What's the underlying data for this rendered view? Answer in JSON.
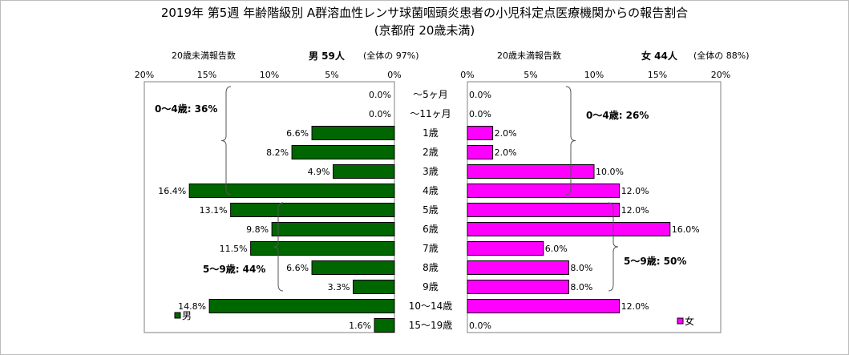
{
  "title": "2019年 第5週 年齢階級別 A群溶血性レンサ球菌咽頭炎患者の小児科定点医療機関からの報告割合",
  "subtitle": "(京都府 20歳未満)",
  "male_header": {
    "label": "20歳未満報告数",
    "count": "男  59人",
    "share": "(全体の  97%)"
  },
  "female_header": {
    "label": "20歳未満報告数",
    "count": "女  44人",
    "share": "(全体の  88%)"
  },
  "annotations": {
    "male_0_4": "0～4歳: 36%",
    "male_5_9": "5～9歳: 44%",
    "female_0_4": "0～4歳: 26%",
    "female_5_9": "5～9歳: 50%"
  },
  "legend": {
    "male": "男",
    "female": "女"
  },
  "colors": {
    "male": "#006600",
    "female": "#ff00ff",
    "border": "#000000"
  },
  "chart_data": {
    "type": "bar",
    "orientation": "horizontal-population-pyramid",
    "categories": [
      "～5ヶ月",
      "～11ヶ月",
      "1歳",
      "2歳",
      "3歳",
      "4歳",
      "5歳",
      "6歳",
      "7歳",
      "8歳",
      "9歳",
      "10～14歳",
      "15～19歳"
    ],
    "series": [
      {
        "name": "男",
        "values": [
          0.0,
          0.0,
          6.6,
          8.2,
          4.9,
          16.4,
          13.1,
          9.8,
          11.5,
          6.6,
          3.3,
          14.8,
          1.6
        ]
      },
      {
        "name": "女",
        "values": [
          0.0,
          0.0,
          2.0,
          2.0,
          10.0,
          12.0,
          12.0,
          16.0,
          6.0,
          8.0,
          8.0,
          12.0,
          0.0
        ]
      }
    ],
    "male_ticks": [
      "20%",
      "15%",
      "10%",
      "5%",
      "0%"
    ],
    "female_ticks": [
      "0%",
      "5%",
      "10%",
      "15%",
      "20%"
    ],
    "xlim": [
      0,
      20
    ],
    "unit": "%",
    "legend": "bottom-inside"
  }
}
